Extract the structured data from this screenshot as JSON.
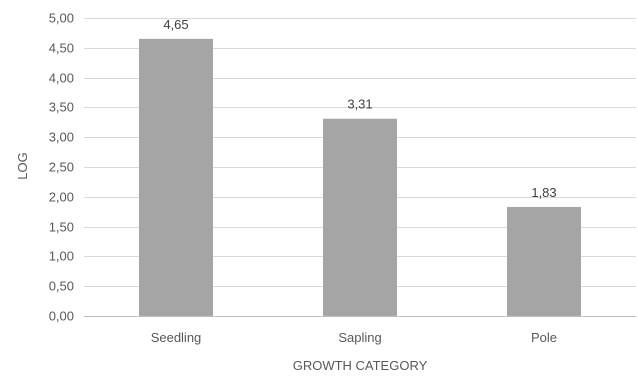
{
  "chart_data": {
    "type": "bar",
    "title": "",
    "xlabel": "GROWTH CATEGORY",
    "ylabel": "LOG",
    "categories": [
      "Seedling",
      "Sapling",
      "Pole"
    ],
    "values": [
      4.65,
      3.31,
      1.83
    ],
    "data_labels": [
      "4,65",
      "3,31",
      "1,83"
    ],
    "ylim": [
      0,
      5
    ],
    "y_ticks": [
      0,
      0.5,
      1,
      1.5,
      2,
      2.5,
      3,
      3.5,
      4,
      4.5,
      5
    ],
    "y_tick_labels": [
      "0,00",
      "0,50",
      "1,00",
      "1,50",
      "2,00",
      "2,50",
      "3,00",
      "3,50",
      "4,00",
      "4,50",
      "5,00"
    ],
    "grid": true,
    "legend": "none",
    "colors": {
      "bar": "#a5a5a5"
    }
  }
}
